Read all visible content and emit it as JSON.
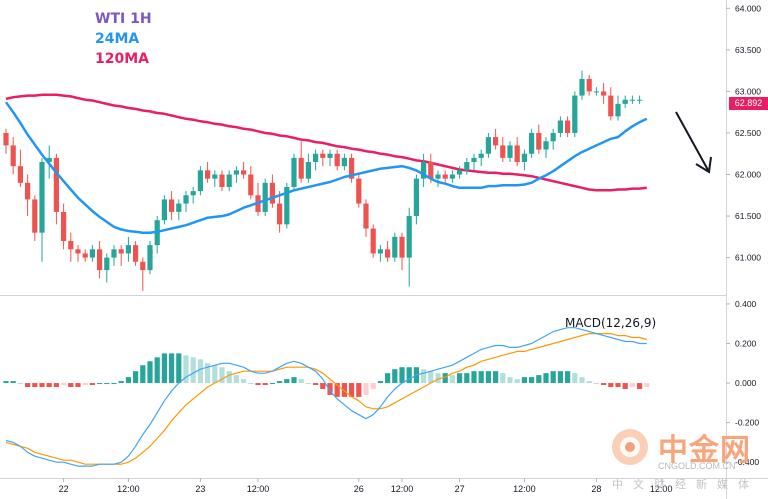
{
  "legend": {
    "title": "WTI 1H",
    "ma_short": "24MA",
    "ma_long": "120MA"
  },
  "macd_label": "MACD(12,26,9)",
  "last_price": "62.892",
  "watermark": {
    "brand": "中金网",
    "url": "CNGOLD.COM.CN",
    "tagline": "中文财经新媒体"
  },
  "colors": {
    "title": "#7e57c2",
    "ma_short": "#2196f3",
    "ma_long": "#e91e63",
    "up": "#26a69a",
    "down": "#ef5350",
    "macd_line": "#42a5f5",
    "signal_line": "#ff9800",
    "watermark_orange": "#f7a57a"
  },
  "chart_data": [
    {
      "type": "candlestick",
      "title": "WTI 1H",
      "xtick_labels": [
        "22",
        "12:00",
        "23",
        "12:00",
        "26",
        "12:00",
        "27",
        "12:00",
        "28",
        "12:00"
      ],
      "y_ticks": [
        61.0,
        61.5,
        62.0,
        62.5,
        63.0,
        63.5,
        64.0
      ],
      "y_tick_labels": [
        "61.000",
        "61.500",
        "62.000",
        "62.500",
        "63.000",
        "63.500",
        "64.000"
      ],
      "ylim": [
        60.55,
        64.1
      ],
      "series": [
        {
          "name": "24MA",
          "values": [
            62.87,
            62.75,
            62.62,
            62.48,
            62.36,
            62.24,
            62.13,
            62.02,
            61.92,
            61.82,
            61.72,
            61.64,
            61.56,
            61.49,
            61.43,
            61.37,
            61.34,
            61.32,
            61.31,
            61.3,
            61.3,
            61.31,
            61.33,
            61.35,
            61.37,
            61.39,
            61.42,
            61.45,
            61.48,
            61.49,
            61.5,
            61.52,
            61.56,
            61.6,
            61.63,
            61.66,
            61.69,
            61.72,
            61.75,
            61.78,
            61.81,
            61.83,
            61.85,
            61.87,
            61.89,
            61.91,
            61.94,
            61.97,
            61.99,
            62.01,
            62.03,
            62.05,
            62.07,
            62.08,
            62.09,
            62.1,
            62.08,
            62.05,
            62.0,
            61.95,
            61.91,
            61.89,
            61.86,
            61.84,
            61.84,
            61.84,
            61.84,
            61.86,
            61.86,
            61.87,
            61.87,
            61.87,
            61.88,
            61.9,
            61.95,
            61.99,
            62.04,
            62.1,
            62.16,
            62.22,
            62.27,
            62.31,
            62.35,
            62.39,
            62.43,
            62.45,
            62.52,
            62.58,
            62.63,
            62.67
          ]
        },
        {
          "name": "120MA",
          "values": [
            62.91,
            62.93,
            62.94,
            62.95,
            62.95,
            62.96,
            62.96,
            62.96,
            62.95,
            62.94,
            62.92,
            62.9,
            62.89,
            62.87,
            62.85,
            62.83,
            62.82,
            62.8,
            62.79,
            62.77,
            62.76,
            62.74,
            62.73,
            62.71,
            62.69,
            62.67,
            62.66,
            62.64,
            62.63,
            62.61,
            62.6,
            62.58,
            62.57,
            62.55,
            62.54,
            62.52,
            62.5,
            62.49,
            62.47,
            62.46,
            62.44,
            62.42,
            62.41,
            62.39,
            62.38,
            62.36,
            62.34,
            62.33,
            62.31,
            62.3,
            62.28,
            62.27,
            62.25,
            62.24,
            62.22,
            62.21,
            62.19,
            62.17,
            62.16,
            62.14,
            62.12,
            62.1,
            62.08,
            62.06,
            62.05,
            62.04,
            62.03,
            62.02,
            62.02,
            62.01,
            62.01,
            62.0,
            61.99,
            61.98,
            61.96,
            61.94,
            61.92,
            61.9,
            61.88,
            61.86,
            61.84,
            61.82,
            61.81,
            61.81,
            61.81,
            61.82,
            61.82,
            61.83,
            61.83,
            61.84
          ]
        }
      ],
      "ohlc": [
        [
          62.5,
          62.55,
          62.25,
          62.35
        ],
        [
          62.35,
          62.45,
          62.0,
          62.1
        ],
        [
          62.1,
          62.3,
          61.85,
          61.9
        ],
        [
          61.9,
          62.0,
          61.5,
          61.7
        ],
        [
          61.7,
          61.75,
          61.2,
          61.3
        ],
        [
          61.3,
          62.2,
          60.95,
          62.15
        ],
        [
          62.15,
          62.35,
          61.95,
          62.2
        ],
        [
          62.2,
          62.25,
          61.4,
          61.55
        ],
        [
          61.55,
          61.65,
          61.1,
          61.2
        ],
        [
          61.2,
          61.3,
          60.95,
          61.1
        ],
        [
          61.1,
          61.15,
          60.95,
          61.05
        ],
        [
          61.05,
          61.1,
          60.95,
          61.0
        ],
        [
          61.0,
          61.15,
          60.95,
          61.1
        ],
        [
          61.1,
          61.2,
          60.75,
          60.85
        ],
        [
          60.85,
          61.05,
          60.7,
          61.0
        ],
        [
          61.0,
          61.15,
          60.9,
          61.1
        ],
        [
          61.1,
          61.15,
          60.9,
          61.05
        ],
        [
          61.05,
          61.25,
          60.95,
          61.15
        ],
        [
          61.15,
          61.2,
          60.9,
          60.95
        ],
        [
          60.95,
          61.0,
          60.6,
          60.85
        ],
        [
          60.85,
          61.2,
          60.8,
          61.15
        ],
        [
          61.15,
          61.5,
          61.05,
          61.45
        ],
        [
          61.45,
          61.75,
          61.4,
          61.7
        ],
        [
          61.7,
          61.8,
          61.45,
          61.55
        ],
        [
          61.55,
          61.7,
          61.45,
          61.65
        ],
        [
          61.65,
          61.8,
          61.55,
          61.75
        ],
        [
          61.75,
          61.85,
          61.65,
          61.8
        ],
        [
          61.8,
          62.1,
          61.75,
          62.05
        ],
        [
          62.05,
          62.15,
          61.9,
          61.95
        ],
        [
          61.95,
          62.05,
          61.85,
          62.0
        ],
        [
          62.0,
          62.05,
          61.8,
          61.85
        ],
        [
          61.85,
          62.05,
          61.8,
          62.0
        ],
        [
          62.0,
          62.1,
          61.9,
          62.05
        ],
        [
          62.05,
          62.15,
          61.95,
          62.0
        ],
        [
          62.0,
          62.1,
          61.7,
          61.75
        ],
        [
          61.75,
          61.9,
          61.5,
          61.55
        ],
        [
          61.55,
          61.95,
          61.5,
          61.9
        ],
        [
          61.9,
          62.0,
          61.6,
          61.65
        ],
        [
          61.65,
          61.8,
          61.3,
          61.4
        ],
        [
          61.4,
          61.9,
          61.35,
          61.85
        ],
        [
          61.85,
          62.25,
          61.8,
          62.2
        ],
        [
          62.2,
          62.4,
          61.9,
          61.95
        ],
        [
          61.95,
          62.25,
          61.9,
          62.15
        ],
        [
          62.15,
          62.3,
          62.05,
          62.25
        ],
        [
          62.25,
          62.3,
          62.1,
          62.2
        ],
        [
          62.2,
          62.3,
          62.1,
          62.25
        ],
        [
          62.25,
          62.3,
          62.05,
          62.1
        ],
        [
          62.1,
          62.25,
          62.05,
          62.2
        ],
        [
          62.2,
          62.25,
          61.9,
          61.95
        ],
        [
          61.95,
          62.0,
          61.6,
          61.65
        ],
        [
          61.65,
          61.7,
          61.25,
          61.35
        ],
        [
          61.35,
          61.4,
          61.0,
          61.05
        ],
        [
          61.05,
          61.15,
          60.95,
          61.1
        ],
        [
          61.1,
          61.2,
          60.95,
          61.0
        ],
        [
          61.0,
          61.3,
          60.95,
          61.25
        ],
        [
          61.25,
          61.3,
          60.85,
          61.0
        ],
        [
          61.0,
          61.6,
          60.65,
          61.5
        ],
        [
          61.5,
          62.0,
          61.4,
          61.95
        ],
        [
          61.95,
          62.25,
          61.85,
          62.15
        ],
        [
          62.15,
          62.25,
          61.9,
          61.95
        ],
        [
          61.95,
          62.05,
          61.85,
          62.0
        ],
        [
          62.0,
          62.05,
          61.9,
          61.95
        ],
        [
          61.95,
          62.05,
          61.9,
          62.0
        ],
        [
          62.0,
          62.1,
          61.95,
          62.05
        ],
        [
          62.05,
          62.2,
          62.0,
          62.15
        ],
        [
          62.15,
          62.25,
          62.05,
          62.2
        ],
        [
          62.2,
          62.3,
          62.1,
          62.25
        ],
        [
          62.25,
          62.5,
          62.2,
          62.45
        ],
        [
          62.45,
          62.55,
          62.3,
          62.35
        ],
        [
          62.35,
          62.45,
          62.15,
          62.2
        ],
        [
          62.2,
          62.4,
          62.15,
          62.35
        ],
        [
          62.35,
          62.45,
          62.1,
          62.15
        ],
        [
          62.15,
          62.3,
          62.05,
          62.25
        ],
        [
          62.25,
          62.55,
          62.2,
          62.5
        ],
        [
          62.5,
          62.6,
          62.25,
          62.3
        ],
        [
          62.3,
          62.45,
          62.2,
          62.4
        ],
        [
          62.4,
          62.55,
          62.3,
          62.5
        ],
        [
          62.5,
          62.7,
          62.45,
          62.65
        ],
        [
          62.65,
          62.7,
          62.45,
          62.5
        ],
        [
          62.5,
          63.0,
          62.45,
          62.95
        ],
        [
          62.95,
          63.25,
          62.9,
          63.15
        ],
        [
          63.15,
          63.2,
          62.95,
          63.0
        ],
        [
          63.0,
          63.05,
          62.95,
          63.0
        ],
        [
          63.0,
          63.1,
          62.85,
          62.95
        ],
        [
          62.95,
          63.05,
          62.65,
          62.7
        ],
        [
          62.7,
          62.95,
          62.65,
          62.85
        ],
        [
          62.85,
          62.95,
          62.8,
          62.9
        ],
        [
          62.9,
          62.95,
          62.85,
          62.9
        ],
        [
          62.9,
          62.95,
          62.85,
          62.9
        ]
      ]
    },
    {
      "type": "bar",
      "title": "MACD(12,26,9)",
      "y_ticks": [
        -0.4,
        -0.2,
        0.0,
        0.2,
        0.4
      ],
      "y_tick_labels": [
        "-0.400",
        "-0.200",
        "0.000",
        "0.200",
        "0.400"
      ],
      "ylim": [
        -0.48,
        0.44
      ],
      "series": [
        {
          "name": "MACD",
          "values": [
            -0.29,
            -0.3,
            -0.32,
            -0.35,
            -0.37,
            -0.38,
            -0.39,
            -0.4,
            -0.4,
            -0.41,
            -0.42,
            -0.42,
            -0.42,
            -0.41,
            -0.41,
            -0.41,
            -0.4,
            -0.37,
            -0.32,
            -0.26,
            -0.21,
            -0.15,
            -0.09,
            -0.04,
            0.0,
            0.03,
            0.05,
            0.07,
            0.08,
            0.09,
            0.1,
            0.1,
            0.09,
            0.08,
            0.06,
            0.05,
            0.05,
            0.06,
            0.08,
            0.1,
            0.11,
            0.1,
            0.08,
            0.06,
            0.02,
            -0.04,
            -0.08,
            -0.11,
            -0.14,
            -0.16,
            -0.18,
            -0.16,
            -0.12,
            -0.07,
            -0.03,
            0.0,
            0.02,
            0.04,
            0.05,
            0.06,
            0.07,
            0.08,
            0.09,
            0.11,
            0.13,
            0.15,
            0.17,
            0.18,
            0.19,
            0.19,
            0.18,
            0.18,
            0.19,
            0.2,
            0.22,
            0.24,
            0.26,
            0.27,
            0.28,
            0.28,
            0.27,
            0.26,
            0.25,
            0.24,
            0.23,
            0.22,
            0.21,
            0.21,
            0.2,
            0.2
          ]
        },
        {
          "name": "Signal",
          "values": [
            -0.3,
            -0.31,
            -0.32,
            -0.33,
            -0.35,
            -0.36,
            -0.37,
            -0.38,
            -0.39,
            -0.39,
            -0.4,
            -0.41,
            -0.41,
            -0.41,
            -0.41,
            -0.41,
            -0.41,
            -0.4,
            -0.38,
            -0.35,
            -0.32,
            -0.28,
            -0.24,
            -0.19,
            -0.15,
            -0.11,
            -0.08,
            -0.05,
            -0.02,
            0.0,
            0.02,
            0.04,
            0.05,
            0.06,
            0.06,
            0.06,
            0.06,
            0.06,
            0.07,
            0.08,
            0.08,
            0.08,
            0.08,
            0.07,
            0.05,
            0.02,
            -0.01,
            -0.04,
            -0.07,
            -0.09,
            -0.12,
            -0.13,
            -0.13,
            -0.12,
            -0.1,
            -0.08,
            -0.06,
            -0.04,
            -0.02,
            0.0,
            0.02,
            0.03,
            0.05,
            0.06,
            0.08,
            0.09,
            0.11,
            0.12,
            0.13,
            0.14,
            0.15,
            0.16,
            0.16,
            0.17,
            0.18,
            0.19,
            0.2,
            0.21,
            0.22,
            0.23,
            0.24,
            0.25,
            0.25,
            0.25,
            0.25,
            0.24,
            0.24,
            0.23,
            0.23,
            0.22
          ]
        },
        {
          "name": "Histogram",
          "values": [
            0.01,
            0.01,
            0.0,
            -0.02,
            -0.02,
            -0.02,
            -0.02,
            -0.02,
            -0.01,
            -0.02,
            -0.02,
            -0.01,
            -0.01,
            0.0,
            0.0,
            0.0,
            0.01,
            0.03,
            0.06,
            0.09,
            0.11,
            0.13,
            0.15,
            0.15,
            0.15,
            0.14,
            0.13,
            0.12,
            0.1,
            0.09,
            0.08,
            0.06,
            0.04,
            0.02,
            0.0,
            -0.01,
            -0.01,
            0.0,
            0.01,
            0.02,
            0.03,
            0.02,
            0.0,
            -0.01,
            -0.03,
            -0.06,
            -0.07,
            -0.07,
            -0.07,
            -0.07,
            -0.06,
            -0.03,
            0.01,
            0.05,
            0.07,
            0.08,
            0.08,
            0.08,
            0.07,
            0.06,
            0.05,
            0.05,
            0.04,
            0.05,
            0.05,
            0.06,
            0.06,
            0.06,
            0.06,
            0.05,
            0.03,
            0.02,
            0.03,
            0.03,
            0.04,
            0.05,
            0.06,
            0.06,
            0.06,
            0.05,
            0.03,
            0.01,
            0.0,
            -0.01,
            -0.02,
            -0.02,
            -0.03,
            -0.02,
            -0.03,
            -0.02
          ]
        }
      ]
    }
  ]
}
